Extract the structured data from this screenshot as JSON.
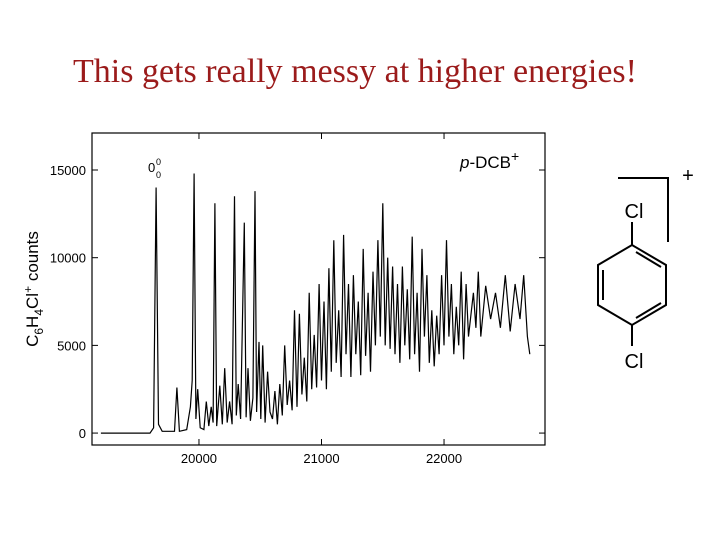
{
  "chart_data": {
    "type": "line",
    "title": "This gets really messy at higher energies!",
    "ylabel": [
      "C",
      "6",
      "H",
      "4",
      "Cl",
      "+",
      " counts"
    ],
    "annotation": [
      "p",
      "-DCB",
      "+"
    ],
    "peak_label": [
      "0",
      "0",
      "0"
    ],
    "color": "#000000",
    "xlim": [
      19127,
      22824
    ],
    "ylim": [
      -680,
      17110
    ],
    "xticks": [
      20000,
      21000,
      22000
    ],
    "yticks": [
      0,
      5000,
      10000,
      15000
    ],
    "x": [
      19200,
      19600,
      19630,
      19650,
      19670,
      19700,
      19800,
      19820,
      19840,
      19900,
      19930,
      19945,
      19960,
      19975,
      19990,
      20010,
      20040,
      20060,
      20080,
      20100,
      20115,
      20130,
      20145,
      20170,
      20190,
      20210,
      20230,
      20250,
      20270,
      20290,
      20305,
      20320,
      20340,
      20370,
      20385,
      20400,
      20420,
      20440,
      20457,
      20470,
      20490,
      20505,
      20520,
      20540,
      20560,
      20580,
      20600,
      20620,
      20640,
      20660,
      20680,
      20700,
      20720,
      20740,
      20760,
      20780,
      20800,
      20820,
      20840,
      20860,
      20880,
      20900,
      20920,
      20940,
      20960,
      20980,
      21000,
      21020,
      21040,
      21060,
      21080,
      21100,
      21120,
      21140,
      21160,
      21180,
      21200,
      21220,
      21240,
      21260,
      21280,
      21300,
      21320,
      21340,
      21360,
      21380,
      21400,
      21420,
      21440,
      21460,
      21480,
      21500,
      21520,
      21540,
      21560,
      21580,
      21600,
      21620,
      21640,
      21660,
      21680,
      21700,
      21720,
      21740,
      21760,
      21780,
      21800,
      21820,
      21840,
      21860,
      21880,
      21900,
      21920,
      21940,
      21960,
      21980,
      22000,
      22020,
      22040,
      22060,
      22080,
      22100,
      22120,
      22140,
      22160,
      22180,
      22200,
      22240,
      22260,
      22280,
      22300,
      22340,
      22380,
      22420,
      22460,
      22500,
      22540,
      22580,
      22620,
      22650,
      22680,
      22700
    ],
    "values": [
      0,
      0,
      300,
      14000,
      500,
      100,
      100,
      2600,
      100,
      200,
      1500,
      3000,
      14800,
      800,
      2500,
      300,
      200,
      1800,
      400,
      1500,
      600,
      13100,
      400,
      2700,
      500,
      3700,
      600,
      1800,
      500,
      13500,
      1000,
      2800,
      800,
      12000,
      900,
      3700,
      700,
      2000,
      13800,
      1200,
      5200,
      800,
      5000,
      600,
      3500,
      1200,
      800,
      2400,
      500,
      2800,
      1000,
      5000,
      1600,
      3000,
      1300,
      7000,
      1500,
      6800,
      2200,
      4300,
      1800,
      8000,
      2500,
      5600,
      2600,
      8500,
      3000,
      7500,
      2500,
      9400,
      3500,
      11000,
      4000,
      7000,
      3200,
      11300,
      4500,
      8500,
      3200,
      9000,
      4500,
      7500,
      3300,
      10500,
      4400,
      8000,
      3500,
      9200,
      5000,
      11000,
      5500,
      13100,
      5000,
      10000,
      4800,
      9500,
      4500,
      8500,
      4000,
      9500,
      5000,
      8200,
      4200,
      11200,
      4500,
      8000,
      3500,
      10500,
      5500,
      9000,
      4000,
      7000,
      3800,
      6700,
      4500,
      9000,
      5000,
      11000,
      5500,
      8500,
      4500,
      7200,
      5000,
      9200,
      4200,
      8500,
      5500,
      8000,
      6000,
      9200,
      5500,
      8400,
      6500,
      8000,
      6000,
      9000,
      5800,
      8500,
      6500,
      9000,
      5500,
      4500
    ]
  },
  "molecule": {
    "atoms": [
      "Cl",
      "Cl"
    ],
    "charge": "+"
  }
}
